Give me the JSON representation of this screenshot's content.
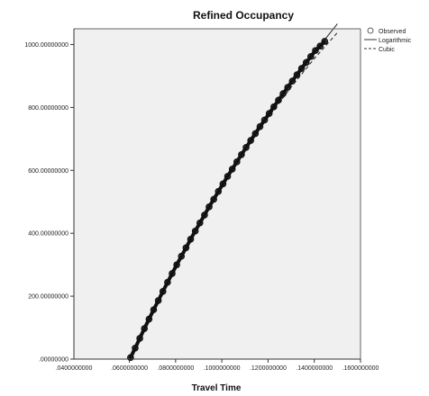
{
  "chart_data": {
    "type": "scatter",
    "title": "Refined Occupancy",
    "xlabel": "Travel Time",
    "ylabel": "",
    "xlim": [
      0.036,
      0.16
    ],
    "ylim": [
      0,
      1050
    ],
    "x_ticks": [
      0.06,
      0.08,
      0.1,
      0.12,
      0.14,
      0.16
    ],
    "x_tick_labels": [
      ".0600000000",
      ".0800000000",
      ".1000000000",
      ".1200000000",
      ".1400000000",
      ".1600000000"
    ],
    "y_ticks": [
      0,
      200,
      400,
      600,
      800,
      1000
    ],
    "y_tick_labels": [
      ".00000000",
      "200.00000000",
      "400.00000000",
      "600.00000000",
      "800.00000000",
      "1000.00000000"
    ],
    "grid": false,
    "legend_position": "top-right outside",
    "series": [
      {
        "name": "Observed",
        "kind": "scatter",
        "marker": "circle",
        "x": [
          0.0605,
          0.0625,
          0.0645,
          0.0665,
          0.0685,
          0.0705,
          0.0725,
          0.0745,
          0.0765,
          0.0785,
          0.0805,
          0.0825,
          0.0845,
          0.0865,
          0.0885,
          0.0905,
          0.0925,
          0.0945,
          0.0965,
          0.0985,
          0.1005,
          0.1025,
          0.1045,
          0.1065,
          0.1085,
          0.1105,
          0.1125,
          0.1145,
          0.1165,
          0.1185,
          0.1205,
          0.1225,
          0.1245,
          0.1265,
          0.1285,
          0.1305,
          0.1325,
          0.1345,
          0.1365,
          0.1385,
          0.1405,
          0.1425,
          0.1445
        ],
        "y": [
          5,
          35,
          66,
          97,
          127,
          157,
          186,
          215,
          244,
          272,
          300,
          327,
          354,
          381,
          407,
          433,
          458,
          484,
          508,
          533,
          557,
          581,
          604,
          627,
          650,
          673,
          695,
          717,
          739,
          760,
          781,
          802,
          823,
          844,
          864,
          884,
          904,
          924,
          943,
          962,
          981,
          995,
          1010
        ]
      },
      {
        "name": "Logarithmic",
        "kind": "line",
        "style": "solid",
        "x": [
          0.06,
          0.07,
          0.08,
          0.09,
          0.1,
          0.11,
          0.12,
          0.13,
          0.14,
          0.15
        ],
        "y": [
          0,
          155,
          298,
          430,
          552,
          667,
          775,
          877,
          974,
          1066
        ]
      },
      {
        "name": "Cubic",
        "kind": "line",
        "style": "dashed",
        "x": [
          0.06,
          0.07,
          0.08,
          0.09,
          0.1,
          0.11,
          0.12,
          0.13,
          0.14,
          0.15
        ],
        "y": [
          0,
          155,
          298,
          430,
          552,
          664,
          768,
          865,
          955,
          1038
        ]
      }
    ]
  }
}
